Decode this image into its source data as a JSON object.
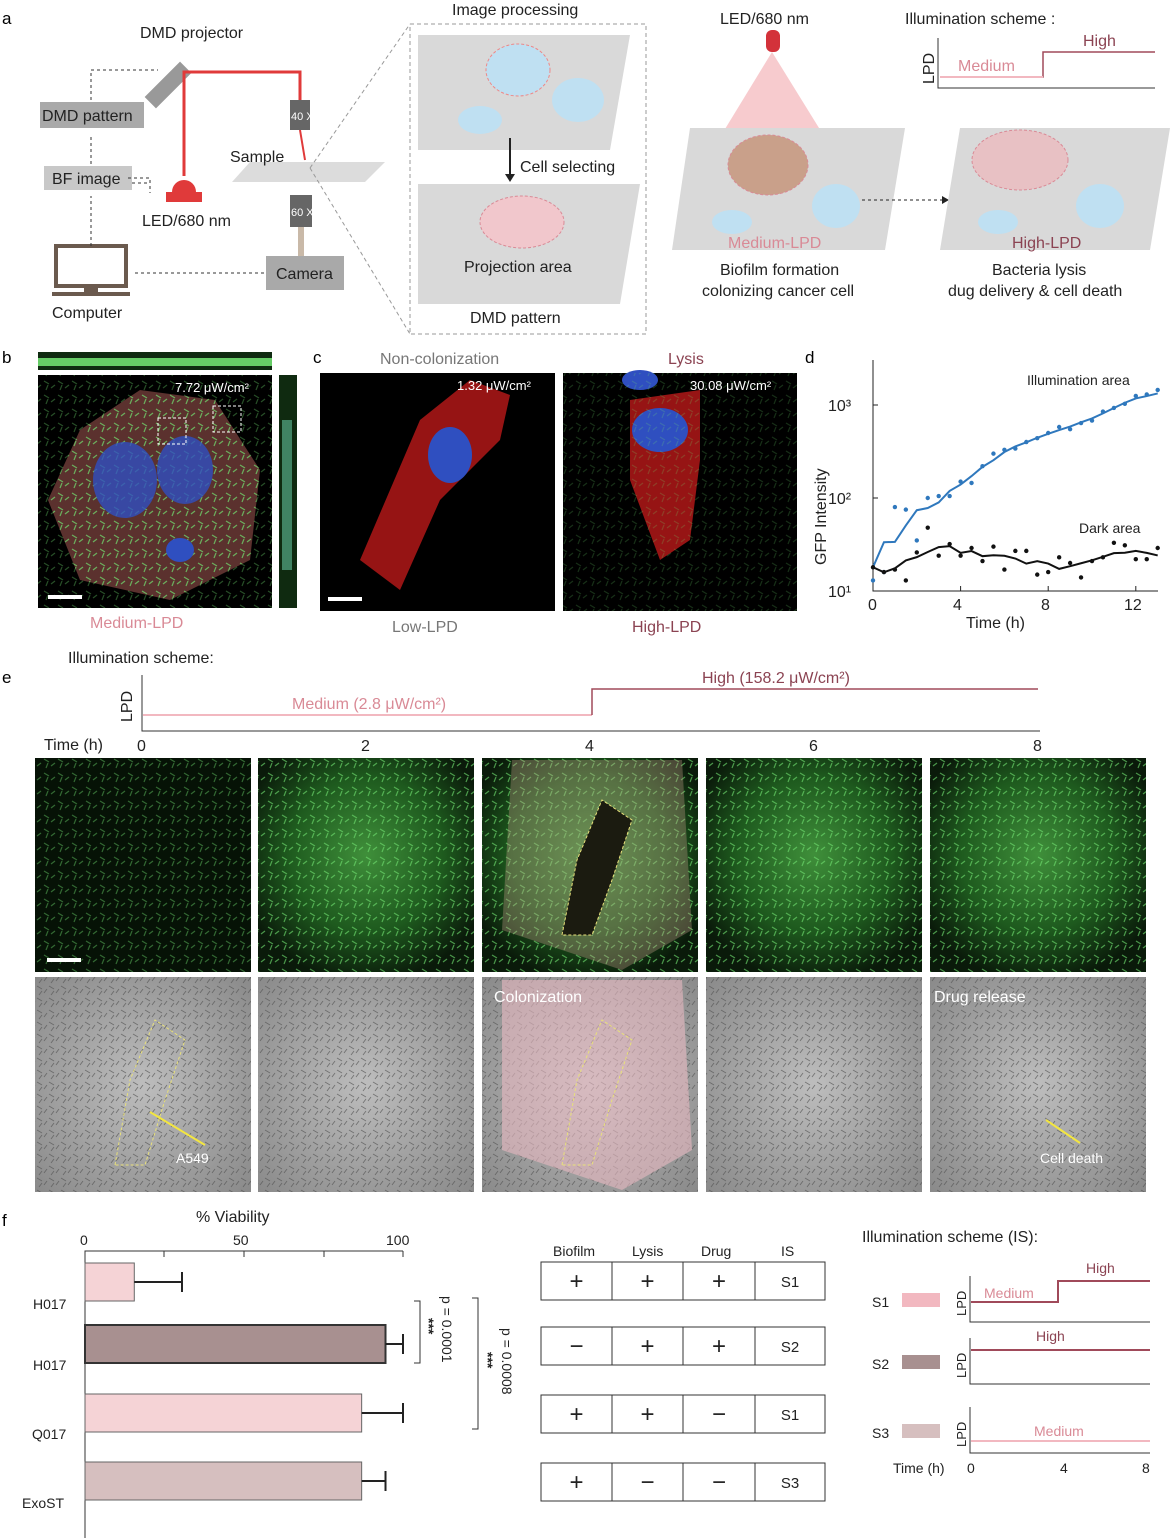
{
  "panel_labels": [
    "a",
    "b",
    "c",
    "d",
    "e",
    "f"
  ],
  "a": {
    "dmd_projector": "DMD projector",
    "dmd_pattern": "DMD pattern",
    "bf_image": "BF image",
    "computer": "Computer",
    "led": "LED/680 nm",
    "sample": "Sample",
    "obj40": "40 X",
    "obj60": "60 X",
    "camera": "Camera",
    "image_processing": "Image processing",
    "cell_selecting": "Cell selecting",
    "projection_area": "Projection area",
    "dmd_pattern_caption": "DMD pattern",
    "led_top": "LED/680 nm",
    "illumination_scheme": "Illumination scheme :",
    "lpd": "LPD",
    "medium": "Medium",
    "high": "High",
    "medium_lpd": "Medium-LPD",
    "high_lpd": "High-LPD",
    "caption_left": [
      "Biofilm formation",
      "colonizing cancer cell"
    ],
    "caption_right": [
      "Bacteria lysis",
      "dug delivery & cell death"
    ]
  },
  "b": {
    "intensity": "7.72 μW/cm²",
    "caption": "Medium-LPD"
  },
  "c": {
    "left_title": "Non-colonization",
    "right_title": "Lysis",
    "left_intensity": "1.32 μW/cm²",
    "right_intensity": "30.08 μW/cm²",
    "left_caption": "Low-LPD",
    "right_caption": "High-LPD"
  },
  "colors": {
    "medium": "#f2b8c0",
    "high": "#a04a5a",
    "illum_series": "#2f78bd",
    "dark_series": "#111111",
    "bar_light": "#f5d3d6",
    "bar_dark": "#a89090",
    "bar_exost": "#d6bfbf"
  },
  "chart_data": [
    {
      "type": "scatter",
      "panel": "d",
      "xlabel": "Time (h)",
      "ylabel": "GFP Intensity",
      "xlim": [
        0,
        13
      ],
      "ylim": [
        10,
        2000
      ],
      "yscale": "log",
      "xticks": [
        "0",
        "4",
        "8",
        "12"
      ],
      "yticks": [
        "10¹",
        "10²",
        "10³"
      ],
      "x": [
        0,
        0.5,
        1,
        1.5,
        2,
        2.5,
        3,
        3.5,
        4,
        4.5,
        5,
        5.5,
        6,
        6.5,
        7,
        7.5,
        8,
        8.5,
        9,
        9.5,
        10,
        10.5,
        11,
        11.5,
        12,
        12.5,
        13
      ],
      "series": [
        {
          "name": "Illumination area",
          "values": [
            13,
            16,
            80,
            75,
            35,
            100,
            105,
            105,
            150,
            145,
            220,
            300,
            330,
            340,
            400,
            440,
            500,
            580,
            550,
            640,
            680,
            850,
            930,
            1030,
            1250,
            1300,
            1450
          ]
        },
        {
          "name": "Dark area",
          "values": [
            18,
            16,
            17,
            13,
            26,
            48,
            24,
            32,
            24,
            29,
            21,
            30,
            17,
            27,
            27,
            15,
            16,
            23,
            20,
            14,
            21,
            23,
            33,
            31,
            22,
            22,
            29
          ]
        }
      ]
    },
    {
      "type": "bar",
      "panel": "f",
      "orientation": "horizontal",
      "xlabel": "% Viability",
      "xlim": [
        0,
        100
      ],
      "xticks": [
        "0",
        "50",
        "100"
      ],
      "categories": [
        "H017",
        "H017",
        "Q017",
        "ExoST"
      ],
      "values": [
        15.5,
        94.5,
        87,
        87
      ],
      "errors": [
        15,
        5.5,
        13,
        7.5
      ],
      "annotations": [
        {
          "stars": "***",
          "p": "p = 0.0001"
        },
        {
          "stars": "***",
          "p": "p = 0.0008"
        }
      ]
    }
  ],
  "e": {
    "illumination_scheme": "Illumination scheme:",
    "lpd": "LPD",
    "medium": "Medium (2.8 μW/cm²)",
    "high": "High (158.2 μW/cm²)",
    "time_label": "Time (h)",
    "time_ticks": [
      "0",
      "2",
      "4",
      "6",
      "8"
    ],
    "labels": {
      "colonization": "Colonization",
      "drug_release": "Drug release",
      "a549": "A549",
      "cell_death": "Cell death"
    }
  },
  "f_table": {
    "headers": [
      "Biofilm",
      "Lysis",
      "Drug",
      "IS"
    ],
    "rows": [
      [
        "+",
        "+",
        "+",
        "S1"
      ],
      [
        "−",
        "+",
        "+",
        "S2"
      ],
      [
        "+",
        "+",
        "−",
        "S1"
      ],
      [
        "+",
        "−",
        "−",
        "S3"
      ]
    ]
  },
  "f_scheme": {
    "title": "Illumination scheme (IS):",
    "lpd": "LPD",
    "s": [
      "S1",
      "S2",
      "S3"
    ],
    "medium": "Medium",
    "high": "High",
    "time_label": "Time (h)",
    "ticks": [
      "0",
      "4",
      "8"
    ]
  }
}
